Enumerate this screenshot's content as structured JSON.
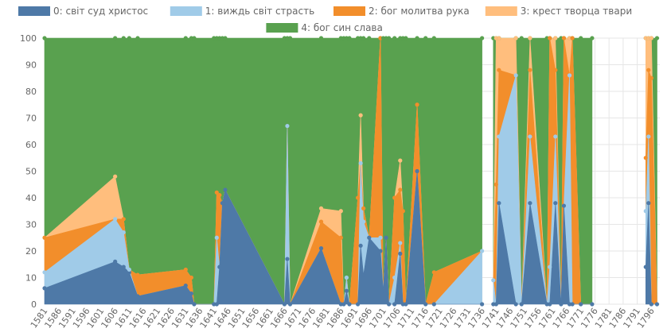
{
  "chart_data": {
    "type": "area",
    "stacked": true,
    "normalized_percent": true,
    "x_tick_labels": [
      "1581",
      "1586",
      "1591",
      "1596",
      "1601",
      "1606",
      "1611",
      "1616",
      "1621",
      "1626",
      "1631",
      "1636",
      "1641",
      "1646",
      "1651",
      "1656",
      "1661",
      "1666",
      "1671",
      "1676",
      "1681",
      "1686",
      "1691",
      "1696",
      "1701",
      "1706",
      "1711",
      "1716",
      "1721",
      "1726",
      "1731",
      "1736",
      "1741",
      "1746",
      "1751",
      "1756",
      "1761",
      "1766",
      "1771",
      "1776",
      "1781",
      "1786",
      "1791",
      "1796"
    ],
    "xlim": [
      1581,
      1799
    ],
    "ylim": [
      0,
      100
    ],
    "y_ticks": [
      0,
      10,
      20,
      30,
      40,
      50,
      60,
      70,
      80,
      90,
      100
    ],
    "grid": true,
    "legend_position": "top",
    "series": [
      {
        "name": "0: світ суд христос",
        "color": "#4e79a7"
      },
      {
        "name": "1: виждь світ страсть",
        "color": "#a0cbe8"
      },
      {
        "name": "2: бог молитва рука",
        "color": "#f28e2b"
      },
      {
        "name": "3: крест творца твари",
        "color": "#ffbe7d"
      },
      {
        "name": "4: бог син слава",
        "color": "#59a14f"
      }
    ],
    "points": [
      {
        "x": 1581,
        "v": [
          6,
          6,
          13,
          0
        ]
      },
      {
        "x": 1606,
        "v": [
          16,
          16,
          0,
          16
        ]
      },
      {
        "x": 1609,
        "v": [
          14,
          13,
          5,
          0
        ]
      },
      {
        "x": 1611,
        "v": [
          12,
          1,
          0,
          0
        ]
      },
      {
        "x": 1614,
        "v": [
          3,
          0,
          8,
          0
        ]
      },
      {
        "x": 1631,
        "v": [
          7,
          0,
          6,
          0
        ]
      },
      {
        "x": 1633,
        "v": [
          4,
          0,
          6,
          0
        ]
      },
      {
        "x": 1634,
        "v": [
          0,
          0,
          0,
          0
        ]
      },
      {
        "x": 1641,
        "v": [
          0,
          0,
          0,
          0
        ]
      },
      {
        "x": 1642,
        "v": [
          0,
          25,
          17,
          0
        ]
      },
      {
        "x": 1643,
        "v": [
          14,
          0,
          27,
          0
        ]
      },
      {
        "x": 1644,
        "v": [
          38,
          0,
          0,
          0
        ]
      },
      {
        "x": 1645,
        "v": [
          43,
          0,
          0,
          0
        ]
      },
      {
        "x": 1666,
        "v": [
          0,
          0,
          0,
          0
        ]
      },
      {
        "x": 1667,
        "v": [
          17,
          50,
          0,
          0
        ]
      },
      {
        "x": 1668,
        "v": [
          0,
          0,
          0,
          0
        ]
      },
      {
        "x": 1679,
        "v": [
          21,
          0,
          10,
          5
        ]
      },
      {
        "x": 1686,
        "v": [
          0,
          0,
          25,
          10
        ]
      },
      {
        "x": 1687,
        "v": [
          0,
          0,
          0,
          0
        ]
      },
      {
        "x": 1688,
        "v": [
          5,
          5,
          0,
          0
        ]
      },
      {
        "x": 1689,
        "v": [
          0,
          0,
          0,
          0
        ]
      },
      {
        "x": 1692,
        "v": [
          0,
          0,
          40,
          0
        ]
      },
      {
        "x": 1693,
        "v": [
          22,
          31,
          0,
          18
        ]
      },
      {
        "x": 1694,
        "v": [
          11,
          20,
          5,
          0
        ]
      },
      {
        "x": 1696,
        "v": [
          25,
          0,
          0,
          0
        ]
      },
      {
        "x": 1700,
        "v": [
          20,
          5,
          75,
          0
        ]
      },
      {
        "x": 1701,
        "v": [
          5,
          0,
          0,
          0
        ]
      },
      {
        "x": 1702,
        "v": [
          25,
          0,
          0,
          0
        ]
      },
      {
        "x": 1703,
        "v": [
          0,
          0,
          0,
          0
        ]
      },
      {
        "x": 1705,
        "v": [
          0,
          10,
          30,
          0
        ]
      },
      {
        "x": 1707,
        "v": [
          19,
          4,
          20,
          11
        ]
      },
      {
        "x": 1708,
        "v": [
          0,
          0,
          35,
          0
        ]
      },
      {
        "x": 1709,
        "v": [
          0,
          0,
          0,
          0
        ]
      },
      {
        "x": 1713,
        "v": [
          50,
          0,
          25,
          0
        ]
      },
      {
        "x": 1716,
        "v": [
          0,
          0,
          0,
          0
        ]
      },
      {
        "x": 1719,
        "v": [
          0,
          0,
          12,
          0
        ]
      },
      {
        "x": 1736,
        "v": [
          0,
          20,
          0,
          0
        ]
      },
      {
        "x": 1740,
        "v": [
          0,
          9,
          0,
          0
        ]
      },
      {
        "x": 1741,
        "v": [
          0,
          0,
          45,
          55
        ]
      },
      {
        "x": 1742,
        "v": [
          38,
          25,
          25,
          12
        ]
      },
      {
        "x": 1748,
        "v": [
          0,
          86,
          0,
          14
        ]
      },
      {
        "x": 1750,
        "v": [
          0,
          0,
          0,
          0
        ]
      },
      {
        "x": 1753,
        "v": [
          38,
          25,
          25,
          12
        ]
      },
      {
        "x": 1759,
        "v": [
          0,
          0,
          0,
          0
        ]
      },
      {
        "x": 1760,
        "v": [
          0,
          14,
          86,
          0
        ]
      },
      {
        "x": 1762,
        "v": [
          38,
          25,
          25,
          12
        ]
      },
      {
        "x": 1764,
        "v": [
          0,
          0,
          0,
          0
        ]
      },
      {
        "x": 1765,
        "v": [
          37,
          0,
          63,
          0
        ]
      },
      {
        "x": 1767,
        "v": [
          0,
          86,
          0,
          14
        ]
      },
      {
        "x": 1768,
        "v": [
          0,
          0,
          100,
          0
        ]
      },
      {
        "x": 1771,
        "v": [
          0,
          0,
          0,
          0
        ]
      },
      {
        "x": 1775,
        "v": [
          0,
          0,
          0,
          0
        ]
      },
      {
        "x": 1794,
        "v": [
          14,
          21,
          20,
          45
        ]
      },
      {
        "x": 1795,
        "v": [
          38,
          25,
          25,
          12
        ]
      },
      {
        "x": 1796,
        "v": [
          0,
          0,
          85,
          15
        ]
      },
      {
        "x": 1798,
        "v": [
          0,
          0,
          0,
          0
        ]
      }
    ],
    "gaps": [
      [
        1737,
        1739
      ],
      [
        1776,
        1793
      ]
    ]
  }
}
